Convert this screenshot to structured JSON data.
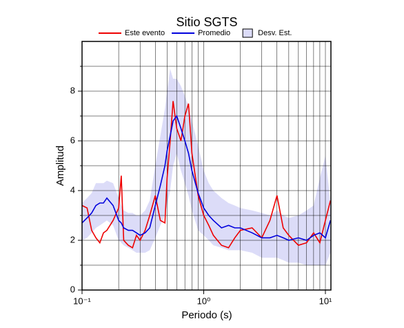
{
  "chart_data": {
    "type": "line",
    "title": "Sitio SGTS",
    "x_label": "Periodo (s)",
    "y_label": "Amplitud",
    "xscale": "log",
    "xlim": [
      0.1,
      11.1
    ],
    "ylim": [
      0,
      10
    ],
    "xticks": [
      {
        "value": 0.1,
        "label": "10⁻¹"
      },
      {
        "value": 1,
        "label": "10⁰"
      },
      {
        "value": 10,
        "label": "10¹"
      }
    ],
    "xminor": [
      0.2,
      0.3,
      0.4,
      0.5,
      0.6,
      0.7,
      0.8,
      0.9,
      2,
      3,
      4,
      5,
      6,
      7,
      8,
      9
    ],
    "yticks": [
      0,
      2,
      4,
      6,
      8
    ],
    "yminor": [
      1,
      3,
      5,
      7,
      9
    ],
    "grid": true,
    "x": [
      0.1,
      0.11,
      0.12,
      0.13,
      0.14,
      0.15,
      0.16,
      0.18,
      0.2,
      0.21,
      0.22,
      0.24,
      0.26,
      0.28,
      0.3,
      0.33,
      0.36,
      0.4,
      0.44,
      0.48,
      0.5,
      0.53,
      0.56,
      0.6,
      0.65,
      0.7,
      0.75,
      0.8,
      0.9,
      1,
      1.1,
      1.2,
      1.4,
      1.6,
      1.8,
      2,
      2.5,
      3,
      3.5,
      4,
      4.5,
      5,
      6,
      7,
      8,
      9,
      10,
      11
    ],
    "band": {
      "name": "Desv. Est.",
      "color": "#dcdcf8",
      "lower": [
        2.0,
        2.1,
        2.3,
        2.5,
        2.6,
        2.7,
        2.8,
        2.6,
        2.0,
        1.9,
        1.8,
        1.7,
        1.6,
        1.5,
        1.5,
        1.5,
        1.6,
        2.1,
        2.6,
        3.0,
        3.4,
        4.0,
        5.0,
        5.5,
        4.8,
        4.3,
        3.8,
        3.2,
        2.4,
        2.2,
        2.0,
        1.8,
        1.7,
        1.6,
        1.6,
        1.6,
        1.5,
        1.3,
        1.3,
        1.3,
        1.2,
        1.1,
        1.1,
        1.0,
        1.0,
        1.0,
        1.0,
        1.5
      ],
      "upper": [
        3.5,
        3.7,
        3.9,
        4.3,
        4.3,
        4.3,
        4.4,
        4.3,
        3.7,
        3.4,
        3.2,
        3.1,
        3.1,
        3.0,
        3.0,
        3.2,
        3.6,
        5.0,
        6.2,
        7.3,
        8.0,
        8.9,
        8.5,
        8.5,
        8.2,
        7.8,
        7.4,
        6.8,
        5.8,
        4.8,
        4.3,
        4.0,
        3.7,
        3.5,
        3.4,
        3.3,
        3.2,
        3.1,
        3.0,
        3.2,
        3.0,
        2.9,
        3.0,
        3.2,
        3.4,
        4.5,
        5.4,
        3.5
      ]
    },
    "series": [
      {
        "name": "Este evento",
        "color": "#ee0000",
        "values": [
          3.4,
          3.3,
          2.4,
          2.1,
          1.9,
          2.3,
          2.4,
          2.8,
          3.3,
          4.6,
          2.0,
          1.8,
          1.7,
          2.2,
          2.0,
          2.4,
          3.0,
          3.8,
          2.8,
          2.7,
          4.5,
          6.0,
          7.6,
          6.5,
          6.0,
          7.0,
          7.5,
          5.5,
          3.8,
          3.0,
          2.6,
          2.2,
          1.8,
          1.7,
          2.1,
          2.4,
          2.5,
          2.1,
          2.8,
          3.8,
          2.5,
          2.2,
          1.8,
          1.9,
          2.3,
          1.9,
          2.8,
          3.6
        ]
      },
      {
        "name": "Promedio",
        "color": "#0000dd",
        "values": [
          2.7,
          2.9,
          3.1,
          3.4,
          3.5,
          3.5,
          3.7,
          3.4,
          2.8,
          2.7,
          2.5,
          2.4,
          2.4,
          2.3,
          2.2,
          2.3,
          2.5,
          3.4,
          4.2,
          5.0,
          5.6,
          6.2,
          6.8,
          7.0,
          6.5,
          6.0,
          5.5,
          4.8,
          3.9,
          3.3,
          3.0,
          2.8,
          2.5,
          2.6,
          2.5,
          2.5,
          2.3,
          2.1,
          2.1,
          2.2,
          2.1,
          2.0,
          2.1,
          2.0,
          2.2,
          2.3,
          2.1,
          2.8
        ]
      }
    ]
  }
}
